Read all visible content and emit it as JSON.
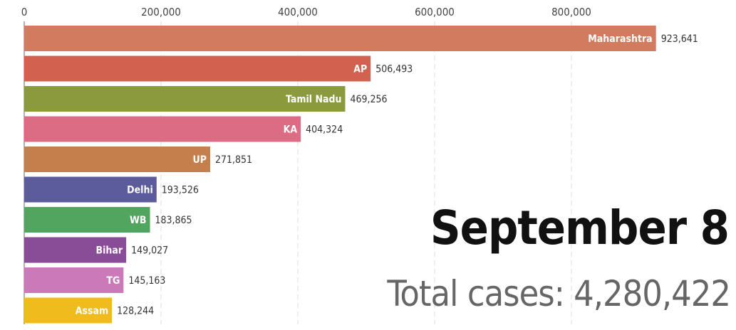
{
  "chart_data": {
    "type": "bar",
    "orientation": "horizontal",
    "categories": [
      "Maharashtra",
      "AP",
      "Tamil Nadu",
      "KA",
      "UP",
      "Delhi",
      "WB",
      "Bihar",
      "TG",
      "Assam"
    ],
    "values": [
      923641,
      506493,
      469256,
      404324,
      271851,
      193526,
      183865,
      149027,
      145163,
      128244
    ],
    "value_labels": [
      "923,641",
      "506,493",
      "469,256",
      "404,324",
      "271,851",
      "193,526",
      "183,865",
      "149,027",
      "145,163",
      "128,244"
    ],
    "colors": [
      "#d27b5e",
      "#d2614f",
      "#8a9a3c",
      "#dc6b84",
      "#c57f4c",
      "#5c5c9c",
      "#52a55e",
      "#894d98",
      "#cc79b9",
      "#f0bb1d"
    ],
    "xticks": [
      0,
      200000,
      400000,
      600000,
      800000
    ],
    "xtick_labels": [
      "0",
      "200,000",
      "400,000",
      "600,000",
      "800,000"
    ],
    "xlim": [
      0,
      1000000
    ],
    "grid": "vertical-dashed",
    "axis_position": "top"
  },
  "date_label": "September 8",
  "total_label": "Total cases: 4,280,422"
}
